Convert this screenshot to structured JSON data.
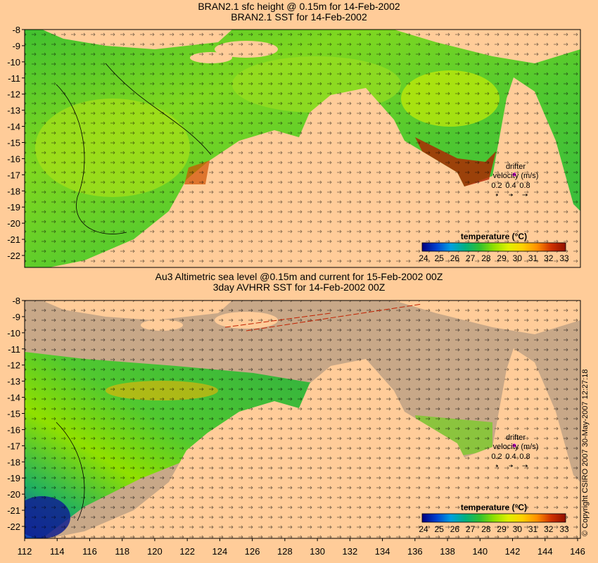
{
  "top_panel": {
    "title_line1": "BRAN2.1 sfc height @ 0.15m for 14-Feb-2002",
    "title_line2": "BRAN2.1 SST for 14-Feb-2002"
  },
  "bottom_panel": {
    "title_line1": "Au3 Altimetric sea level  @0.15m and current for 15-Feb-2002 00Z",
    "title_line2": "3day AVHRR SST for 14-Feb-2002 00Z"
  },
  "lat_ticks": [
    "-8",
    "-9",
    "-10",
    "-11",
    "-12",
    "-13",
    "-14",
    "-15",
    "-16",
    "-17",
    "-18",
    "-19",
    "-20",
    "-21",
    "-22"
  ],
  "lon_ticks": [
    "112",
    "114",
    "116",
    "118",
    "120",
    "122",
    "124",
    "126",
    "128",
    "130",
    "132",
    "134",
    "136",
    "138",
    "140",
    "142",
    "144",
    "146"
  ],
  "colorbar": {
    "label": "temperature (°C)",
    "ticks": [
      "24",
      "25",
      "26",
      "27",
      "28",
      "29",
      "30",
      "31",
      "32",
      "33"
    ],
    "colors": [
      "#000080",
      "#0030c0",
      "#0070e0",
      "#00b0c0",
      "#00b060",
      "#30c030",
      "#90e000",
      "#e0f000",
      "#ffe000",
      "#ffb000",
      "#f07000",
      "#d03000",
      "#a01000"
    ]
  },
  "legend": {
    "drifter_label": "drifter",
    "velocity_label": "velocity (m/s)",
    "velocity_values": [
      "0.2",
      "0.4",
      "0.8"
    ]
  },
  "copyright": "© Copyright CSIRO 2007   30-May-2007 12:27:18",
  "colors": {
    "background": "#ffcc99",
    "land": "#ffcc99",
    "no_data": "#c8a888",
    "drifter_marker": "#ff00ff"
  }
}
